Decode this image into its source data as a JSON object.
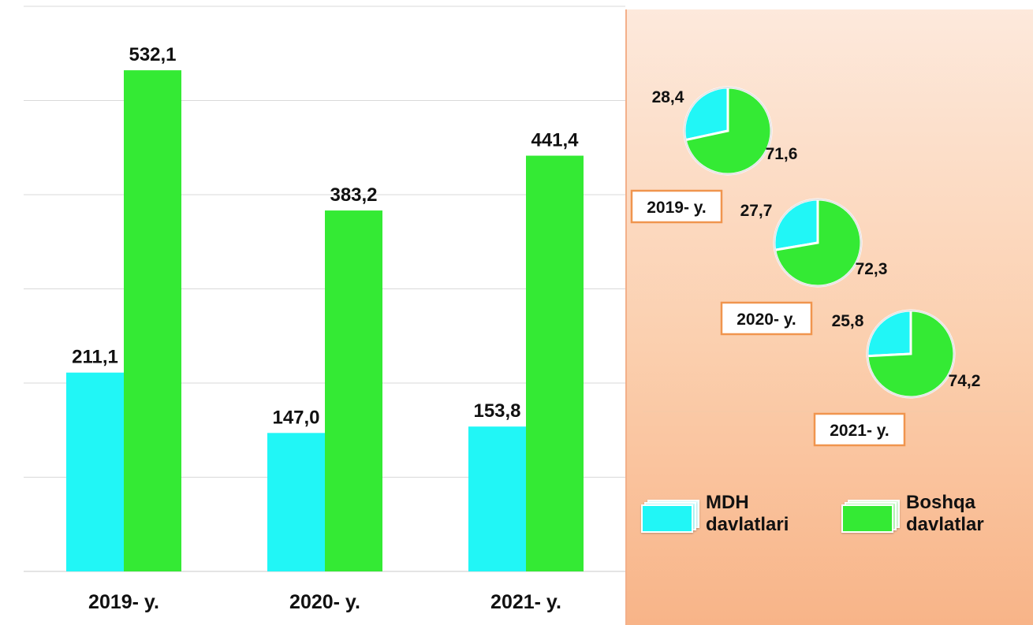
{
  "chart_data": [
    {
      "type": "bar",
      "categories": [
        "2019- y.",
        "2020- y.",
        "2021- y."
      ],
      "series": [
        {
          "name": "MDH davlatlari",
          "values": [
            211.1,
            147.0,
            153.8
          ],
          "labels": [
            "211,1",
            "147,0",
            "153,8"
          ],
          "color": "#21f6f6"
        },
        {
          "name": "Boshqa davlatlar",
          "values": [
            532.1,
            383.2,
            441.4
          ],
          "labels": [
            "532,1",
            "383,2",
            "441,4"
          ],
          "color": "#34ea34"
        }
      ],
      "ylim": [
        0,
        600
      ],
      "grid": true,
      "legend": "right"
    },
    {
      "type": "pie",
      "title": "2019- y.",
      "slices": [
        {
          "name": "MDH davlatlari",
          "value": 28.4,
          "label": "28,4",
          "color": "#21f6f6"
        },
        {
          "name": "Boshqa davlatlar",
          "value": 71.6,
          "label": "71,6",
          "color": "#34ea34"
        }
      ]
    },
    {
      "type": "pie",
      "title": "2020- y.",
      "slices": [
        {
          "name": "MDH davlatlari",
          "value": 27.7,
          "label": "27,7",
          "color": "#21f6f6"
        },
        {
          "name": "Boshqa davlatlar",
          "value": 72.3,
          "label": "72,3",
          "color": "#34ea34"
        }
      ]
    },
    {
      "type": "pie",
      "title": "2021- y.",
      "slices": [
        {
          "name": "MDH davlatlari",
          "value": 25.8,
          "label": "25,8",
          "color": "#21f6f6"
        },
        {
          "name": "Boshqa davlatlar",
          "value": 74.2,
          "label": "74,2",
          "color": "#34ea34"
        }
      ]
    }
  ],
  "legend": {
    "items": [
      {
        "line1": "MDH",
        "line2": "davlatlari",
        "color": "#21f6f6"
      },
      {
        "line1": "Boshqa",
        "line2": "davlatlar",
        "color": "#34ea34"
      }
    ]
  }
}
